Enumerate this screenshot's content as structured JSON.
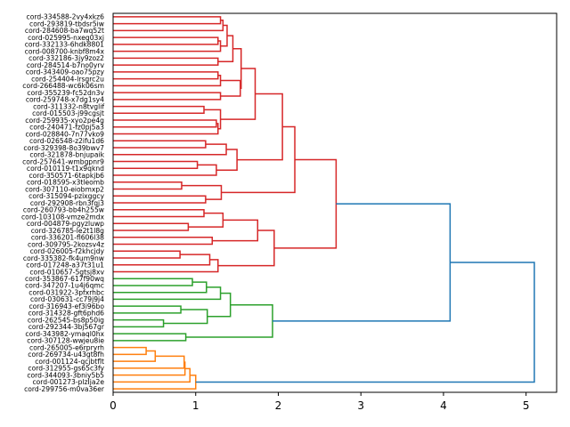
{
  "chart_data": {
    "type": "dendrogram",
    "orientation": "left-to-right",
    "title": "",
    "xlabel": "",
    "ylabel": "",
    "xlim": [
      0,
      5.37
    ],
    "xticks": [
      0,
      1,
      2,
      3,
      4,
      5
    ],
    "grid": false,
    "colors": {
      "red": "#d62728",
      "green": "#2ca02c",
      "orange": "#ff7f0e",
      "blue": "#1f77b4"
    },
    "leaves": [
      "cord-334588-2vy4xkz6",
      "cord-293819-tbdsr5iw",
      "cord-284608-ba7wq52t",
      "cord-025995-nxeg03xj",
      "cord-332133-6hdk8801",
      "cord-008700-knbf8m4x",
      "cord-332186-3jy9zoz2",
      "cord-284514-b7no0yrv",
      "cord-343409-oao75pzy",
      "cord-254404-lrsgrc2u",
      "cord-266488-wc6k06sm",
      "cord-355239-fc52dn3v",
      "cord-259748-x7dg1sy4",
      "cord-311332-n8tvglif",
      "cord-015503-j99cgsjt",
      "cord-259935-xyo2pe4g",
      "cord-240471-fz0pj5a3",
      "cord-028840-7n77vko9",
      "cord-026548-z2ifu1d6",
      "cord-329398-8o39bwv7",
      "cord-321878-bnjupaik",
      "cord-257641-wmbgpnr9",
      "cord-010119-t1x9qknd",
      "cord-350571-6tapkjb6",
      "cord-018595-x3tleomb",
      "cord-307110-eiobmxp2",
      "cord-315094-pzixggcy",
      "cord-292908-rbn3fqj3",
      "cord-260793-bb4h255w",
      "cord-103108-vmze2mdx",
      "cord-004879-pgyzluwp",
      "cord-326785-le2t1l8g",
      "cord-336201-fl606l38",
      "cord-309795-2kozsv4z",
      "cord-026005-f2khcjdy",
      "cord-335382-fk4um9nw",
      "cord-017248-a37t31u1",
      "cord-010657-5gtsj8xv",
      "cord-353867-617f90wq",
      "cord-347207-1u4j6qmc",
      "cord-031922-3pfxrhbc",
      "cord-030631-cc79j9j4",
      "cord-316943-ef3i96bo",
      "cord-314328-gft6phd6",
      "cord-262545-bs8p50ig",
      "cord-292344-3bj567gr",
      "cord-343982-ymaql0hx",
      "cord-307128-wwjeu8ie",
      "cord-265005-e6rpryrh",
      "cord-269734-u43gt8fh",
      "cord-001124-qcjbtflt",
      "cord-312955-gs65c3fy",
      "cord-344093-3bniy5b5",
      "cord-001273-plzIja2e",
      "cord-299756-m0va36er"
    ],
    "tree": {
      "h": 5.1,
      "c": "blue",
      "ch": [
        {
          "h": 4.08,
          "c": "blue",
          "ch": [
            {
              "h": 2.7,
              "c": "red",
              "ch": [
                {
                  "h": 2.2,
                  "c": "red",
                  "ch": [
                    {
                      "h": 2.05,
                      "c": "red",
                      "ch": [
                        {
                          "h": 1.72,
                          "c": "red",
                          "ch": [
                            {
                              "h": 1.55,
                              "c": "red",
                              "ch": [
                                {
                                  "h": 1.45,
                                  "c": "red",
                                  "ch": [
                                    {
                                      "h": 1.38,
                                      "c": "red",
                                      "ch": [
                                        {
                                          "h": 1.33,
                                          "c": "red",
                                          "ch": [
                                            {
                                              "h": 1.3,
                                              "c": "red",
                                              "ch": [
                                                0,
                                                1
                                              ]
                                            },
                                            2
                                          ]
                                        },
                                        {
                                          "h": 1.3,
                                          "c": "red",
                                          "ch": [
                                            {
                                              "h": 1.27,
                                              "c": "red",
                                              "ch": [
                                                3,
                                                4
                                              ]
                                            },
                                            5
                                          ]
                                        }
                                      ]
                                    },
                                    {
                                      "h": 1.27,
                                      "c": "red",
                                      "ch": [
                                        6,
                                        7
                                      ]
                                    }
                                  ]
                                },
                                {
                                  "h": 1.54,
                                  "c": "red",
                                  "ch": [
                                    {
                                      "h": 1.3,
                                      "c": "red",
                                      "ch": [
                                        {
                                          "h": 1.27,
                                          "c": "red",
                                          "ch": [
                                            8,
                                            9
                                          ]
                                        },
                                        10
                                      ]
                                    },
                                    {
                                      "h": 1.3,
                                      "c": "red",
                                      "ch": [
                                        11,
                                        12
                                      ]
                                    }
                                  ]
                                }
                              ]
                            },
                            {
                              "h": 1.3,
                              "c": "red",
                              "ch": [
                                {
                                  "h": 1.1,
                                  "c": "red",
                                  "ch": [
                                    13,
                                    14
                                  ]
                                },
                                {
                                  "h": 1.27,
                                  "c": "red",
                                  "ch": [
                                    {
                                      "h": 1.25,
                                      "c": "red",
                                      "ch": [
                                        15,
                                        16
                                      ]
                                    },
                                    17
                                  ]
                                }
                              ]
                            }
                          ]
                        },
                        {
                          "h": 1.5,
                          "c": "red",
                          "ch": [
                            {
                              "h": 1.37,
                              "c": "red",
                              "ch": [
                                {
                                  "h": 1.12,
                                  "c": "red",
                                  "ch": [
                                    18,
                                    19
                                  ]
                                },
                                20
                              ]
                            },
                            {
                              "h": 1.25,
                              "c": "red",
                              "ch": [
                                {
                                  "h": 1.02,
                                  "c": "red",
                                  "ch": [
                                    21,
                                    22
                                  ]
                                },
                                23
                              ]
                            }
                          ]
                        }
                      ]
                    },
                    {
                      "h": 1.31,
                      "c": "red",
                      "ch": [
                        {
                          "h": 0.83,
                          "c": "red",
                          "ch": [
                            24,
                            25
                          ]
                        },
                        {
                          "h": 1.12,
                          "c": "red",
                          "ch": [
                            26,
                            27
                          ]
                        }
                      ]
                    }
                  ]
                },
                {
                  "h": 1.95,
                  "c": "red",
                  "ch": [
                    {
                      "h": 1.75,
                      "c": "red",
                      "ch": [
                        {
                          "h": 1.33,
                          "c": "red",
                          "ch": [
                            {
                              "h": 1.1,
                              "c": "red",
                              "ch": [
                                28,
                                29
                              ]
                            },
                            {
                              "h": 0.91,
                              "c": "red",
                              "ch": [
                                30,
                                31
                              ]
                            }
                          ]
                        },
                        {
                          "h": 1.2,
                          "c": "red",
                          "ch": [
                            32,
                            33
                          ]
                        }
                      ]
                    },
                    {
                      "h": 1.27,
                      "c": "red",
                      "ch": [
                        {
                          "h": 1.17,
                          "c": "red",
                          "ch": [
                            {
                              "h": 0.81,
                              "c": "red",
                              "ch": [
                                34,
                                35
                              ]
                            },
                            36
                          ]
                        },
                        37
                      ]
                    }
                  ]
                }
              ]
            },
            {
              "h": 1.93,
              "c": "green",
              "ch": [
                {
                  "h": 1.42,
                  "c": "green",
                  "ch": [
                    {
                      "h": 1.3,
                      "c": "green",
                      "ch": [
                        {
                          "h": 1.13,
                          "c": "green",
                          "ch": [
                            {
                              "h": 0.96,
                              "c": "green",
                              "ch": [
                                38,
                                39
                              ]
                            },
                            40
                          ]
                        },
                        41
                      ]
                    },
                    {
                      "h": 1.14,
                      "c": "green",
                      "ch": [
                        {
                          "h": 0.82,
                          "c": "green",
                          "ch": [
                            42,
                            43
                          ]
                        },
                        {
                          "h": 0.61,
                          "c": "green",
                          "ch": [
                            44,
                            45
                          ]
                        }
                      ]
                    }
                  ]
                },
                {
                  "h": 0.88,
                  "c": "green",
                  "ch": [
                    46,
                    47
                  ]
                }
              ]
            }
          ]
        },
        {
          "h": 1.0,
          "c": "orange",
          "ch": [
            {
              "h": 0.93,
              "c": "orange",
              "ch": [
                {
                  "h": 0.87,
                  "c": "orange",
                  "ch": [
                    {
                      "h": 0.86,
                      "c": "orange",
                      "ch": [
                        {
                          "h": 0.51,
                          "c": "orange",
                          "ch": [
                            {
                              "h": 0.4,
                              "c": "orange",
                              "ch": [
                                48,
                                49
                              ]
                            },
                            50
                          ]
                        },
                        51
                      ]
                    },
                    52
                  ]
                },
                53
              ]
            },
            54
          ]
        }
      ]
    }
  }
}
